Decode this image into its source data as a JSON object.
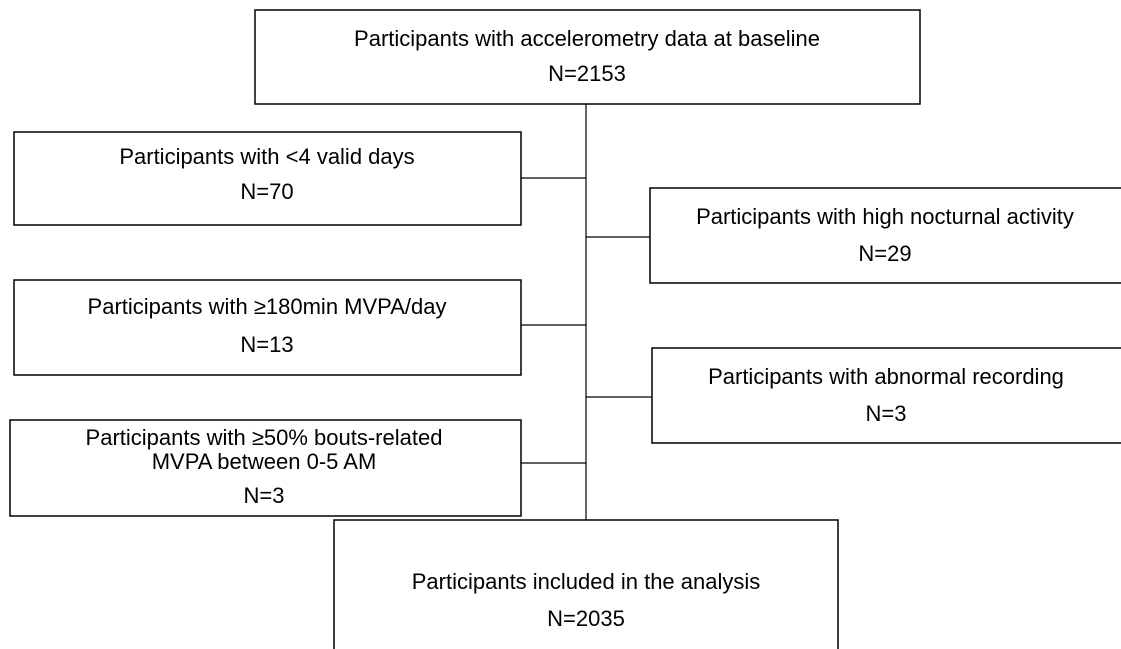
{
  "nodes": [
    {
      "lines": [
        "Participants with accelerometry data at baseline",
        "N=2153"
      ]
    },
    {
      "lines": [
        "Participants with <4 valid days",
        "N=70"
      ]
    },
    {
      "lines": [
        "Participants with high nocturnal activity",
        "N=29"
      ]
    },
    {
      "lines": [
        "Participants with ≥180min MVPA/day",
        "N=13"
      ]
    },
    {
      "lines": [
        "Participants with abnormal recording",
        "N=3"
      ]
    },
    {
      "lines": [
        "Participants with ≥50% bouts-related",
        "MVPA between 0-5 AM",
        "N=3"
      ]
    },
    {
      "lines": [
        "Participants included in the analysis",
        "N=2035"
      ]
    }
  ]
}
